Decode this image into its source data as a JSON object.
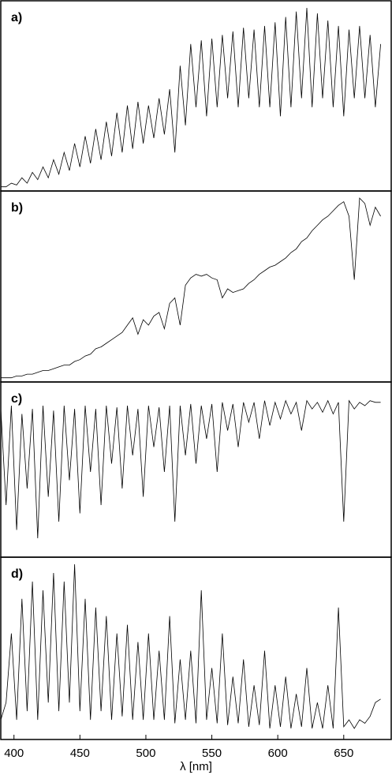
{
  "chart_data": [
    {
      "type": "line",
      "label": "a)",
      "color": "#000000",
      "xlim": [
        390,
        686
      ],
      "ylim": [
        0,
        1
      ],
      "x": [
        390,
        394,
        398,
        402,
        406,
        410,
        414,
        418,
        422,
        426,
        430,
        434,
        438,
        442,
        446,
        450,
        454,
        458,
        462,
        466,
        470,
        474,
        478,
        482,
        486,
        490,
        494,
        498,
        502,
        506,
        510,
        514,
        518,
        522,
        526,
        530,
        534,
        538,
        542,
        546,
        550,
        554,
        558,
        562,
        566,
        570,
        574,
        578,
        582,
        586,
        590,
        594,
        598,
        602,
        606,
        610,
        614,
        618,
        622,
        626,
        630,
        634,
        638,
        642,
        646,
        650,
        654,
        658,
        662,
        666,
        670,
        674,
        678
      ],
      "values": [
        0.01,
        0.01,
        0.03,
        0.02,
        0.06,
        0.03,
        0.09,
        0.05,
        0.12,
        0.06,
        0.16,
        0.08,
        0.2,
        0.1,
        0.25,
        0.12,
        0.29,
        0.14,
        0.33,
        0.16,
        0.37,
        0.18,
        0.42,
        0.2,
        0.46,
        0.22,
        0.48,
        0.25,
        0.46,
        0.28,
        0.5,
        0.3,
        0.55,
        0.2,
        0.68,
        0.35,
        0.8,
        0.45,
        0.82,
        0.4,
        0.83,
        0.45,
        0.85,
        0.5,
        0.87,
        0.45,
        0.89,
        0.5,
        0.88,
        0.45,
        0.9,
        0.45,
        0.92,
        0.4,
        0.95,
        0.45,
        0.98,
        0.5,
        1.0,
        0.45,
        0.97,
        0.5,
        0.93,
        0.45,
        0.9,
        0.4,
        0.88,
        0.5,
        0.9,
        0.5,
        0.85,
        0.45,
        0.8
      ]
    },
    {
      "type": "line",
      "label": "b)",
      "color": "#000000",
      "xlim": [
        390,
        686
      ],
      "ylim": [
        0,
        1
      ],
      "x": [
        390,
        394,
        398,
        402,
        406,
        410,
        414,
        418,
        422,
        426,
        430,
        434,
        438,
        442,
        446,
        450,
        454,
        458,
        462,
        466,
        470,
        474,
        478,
        482,
        486,
        490,
        494,
        498,
        502,
        506,
        510,
        514,
        518,
        522,
        526,
        530,
        534,
        538,
        542,
        546,
        550,
        554,
        558,
        562,
        566,
        570,
        574,
        578,
        582,
        586,
        590,
        594,
        598,
        602,
        606,
        610,
        614,
        618,
        622,
        626,
        630,
        634,
        638,
        642,
        646,
        650,
        654,
        658,
        662,
        666,
        670,
        674,
        678
      ],
      "values": [
        0.01,
        0.01,
        0.01,
        0.02,
        0.02,
        0.03,
        0.03,
        0.04,
        0.05,
        0.05,
        0.06,
        0.07,
        0.08,
        0.08,
        0.1,
        0.11,
        0.13,
        0.14,
        0.17,
        0.18,
        0.2,
        0.22,
        0.24,
        0.26,
        0.3,
        0.34,
        0.25,
        0.33,
        0.3,
        0.35,
        0.37,
        0.28,
        0.42,
        0.45,
        0.3,
        0.52,
        0.56,
        0.58,
        0.57,
        0.58,
        0.56,
        0.55,
        0.45,
        0.5,
        0.48,
        0.49,
        0.5,
        0.53,
        0.55,
        0.58,
        0.6,
        0.62,
        0.63,
        0.65,
        0.67,
        0.7,
        0.72,
        0.76,
        0.78,
        0.82,
        0.85,
        0.88,
        0.9,
        0.93,
        0.96,
        0.98,
        0.9,
        0.55,
        1.0,
        0.97,
        0.85,
        0.95,
        0.9
      ]
    },
    {
      "type": "line",
      "label": "c)",
      "color": "#000000",
      "xlim": [
        390,
        686
      ],
      "ylim": [
        0,
        1
      ],
      "x": [
        390,
        394,
        398,
        402,
        406,
        410,
        414,
        418,
        422,
        426,
        430,
        434,
        438,
        442,
        446,
        450,
        454,
        458,
        462,
        466,
        470,
        474,
        478,
        482,
        486,
        490,
        494,
        498,
        502,
        506,
        510,
        514,
        518,
        522,
        526,
        530,
        534,
        538,
        542,
        546,
        550,
        554,
        558,
        562,
        566,
        570,
        574,
        578,
        582,
        586,
        590,
        594,
        598,
        602,
        606,
        610,
        614,
        618,
        622,
        626,
        630,
        634,
        638,
        642,
        646,
        650,
        654,
        658,
        662,
        666,
        670,
        674,
        678
      ],
      "values": [
        0.88,
        0.3,
        0.9,
        0.15,
        0.85,
        0.4,
        0.88,
        0.1,
        0.9,
        0.35,
        0.87,
        0.2,
        0.9,
        0.45,
        0.88,
        0.25,
        0.9,
        0.5,
        0.88,
        0.3,
        0.9,
        0.55,
        0.89,
        0.4,
        0.9,
        0.6,
        0.88,
        0.35,
        0.9,
        0.65,
        0.89,
        0.5,
        0.9,
        0.2,
        0.9,
        0.6,
        0.91,
        0.55,
        0.9,
        0.7,
        0.91,
        0.5,
        0.92,
        0.75,
        0.91,
        0.65,
        0.92,
        0.8,
        0.92,
        0.7,
        0.93,
        0.78,
        0.92,
        0.82,
        0.93,
        0.85,
        0.92,
        0.75,
        0.93,
        0.88,
        0.92,
        0.86,
        0.93,
        0.85,
        0.92,
        0.2,
        0.93,
        0.88,
        0.92,
        0.9,
        0.93,
        0.92,
        0.92
      ]
    },
    {
      "type": "line",
      "label": "d)",
      "color": "#000000",
      "xlim": [
        390,
        686
      ],
      "ylim": [
        0,
        1
      ],
      "xticks": [
        400,
        450,
        500,
        550,
        600,
        650
      ],
      "xlabel": "λ [nm]",
      "x": [
        390,
        394,
        398,
        402,
        406,
        410,
        414,
        418,
        422,
        426,
        430,
        434,
        438,
        442,
        446,
        450,
        454,
        458,
        462,
        466,
        470,
        474,
        478,
        482,
        486,
        490,
        494,
        498,
        502,
        506,
        510,
        514,
        518,
        522,
        526,
        530,
        534,
        538,
        542,
        546,
        550,
        554,
        558,
        562,
        566,
        570,
        574,
        578,
        582,
        586,
        590,
        594,
        598,
        602,
        606,
        610,
        614,
        618,
        622,
        626,
        630,
        634,
        638,
        642,
        646,
        650,
        654,
        658,
        662,
        666,
        670,
        674,
        678
      ],
      "values": [
        0.1,
        0.2,
        0.6,
        0.1,
        0.8,
        0.15,
        0.9,
        0.1,
        0.85,
        0.2,
        0.95,
        0.15,
        0.9,
        0.2,
        1.0,
        0.15,
        0.8,
        0.1,
        0.75,
        0.15,
        0.7,
        0.1,
        0.6,
        0.12,
        0.65,
        0.1,
        0.55,
        0.1,
        0.6,
        0.1,
        0.5,
        0.1,
        0.7,
        0.08,
        0.45,
        0.1,
        0.5,
        0.08,
        0.85,
        0.1,
        0.4,
        0.08,
        0.6,
        0.07,
        0.35,
        0.08,
        0.45,
        0.06,
        0.3,
        0.07,
        0.5,
        0.05,
        0.3,
        0.06,
        0.35,
        0.05,
        0.25,
        0.06,
        0.4,
        0.05,
        0.2,
        0.05,
        0.3,
        0.05,
        0.75,
        0.06,
        0.1,
        0.05,
        0.1,
        0.08,
        0.12,
        0.2,
        0.22
      ]
    }
  ]
}
